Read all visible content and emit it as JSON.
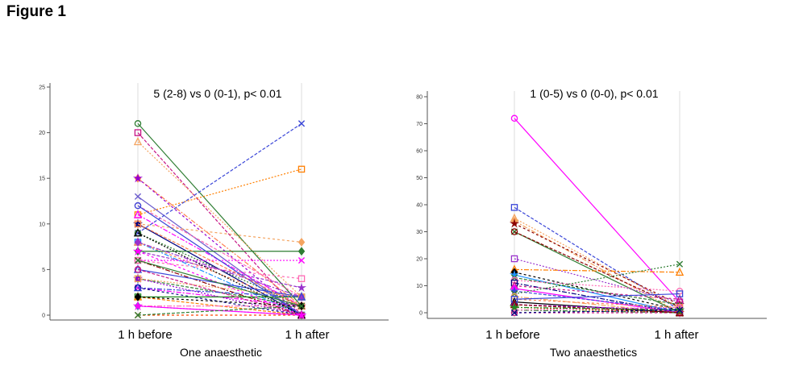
{
  "figure_title": "Figure 1",
  "chart_data": [
    {
      "type": "line",
      "annotation": "5 (2-8) vs 0 (0-1), p< 0.01",
      "xlabel": "One anaesthetic",
      "categories": [
        "1 h before",
        "1 h after"
      ],
      "ylim": [
        0,
        25
      ],
      "yticks": [
        0,
        5,
        10,
        15,
        20,
        25
      ],
      "grid": "vertical lines at categories",
      "series": [
        {
          "values": [
            21,
            1
          ],
          "color": "#2e7d32"
        },
        {
          "values": [
            20,
            0
          ],
          "color": "#c71585"
        },
        {
          "values": [
            19,
            2
          ],
          "color": "#f4a460"
        },
        {
          "values": [
            15,
            1
          ],
          "color": "#ff7f50"
        },
        {
          "values": [
            15,
            0
          ],
          "color": "#9400d3"
        },
        {
          "values": [
            13,
            0
          ],
          "color": "#6a5acd"
        },
        {
          "values": [
            12,
            2
          ],
          "color": "#ff69b4"
        },
        {
          "values": [
            11,
            16
          ],
          "color": "#ff7f00"
        },
        {
          "values": [
            11,
            1
          ],
          "color": "#ff00ff"
        },
        {
          "values": [
            10,
            8
          ],
          "color": "#f4a460"
        },
        {
          "values": [
            10,
            0
          ],
          "color": "#000080"
        },
        {
          "values": [
            9,
            21
          ],
          "color": "#3a46d8"
        },
        {
          "values": [
            9,
            1
          ],
          "color": "#2e7d32"
        },
        {
          "values": [
            8,
            0
          ],
          "color": "#1e90ff"
        },
        {
          "values": [
            8,
            1
          ],
          "color": "#ff7f50"
        },
        {
          "values": [
            7,
            7
          ],
          "color": "#2e7d32"
        },
        {
          "values": [
            7,
            3
          ],
          "color": "#9932cc"
        },
        {
          "values": [
            6,
            6
          ],
          "color": "#ff00ff"
        },
        {
          "values": [
            6,
            0
          ],
          "color": "#8b0000"
        },
        {
          "values": [
            6,
            4
          ],
          "color": "#ff69b4"
        },
        {
          "values": [
            5,
            2
          ],
          "color": "#3a46d8"
        },
        {
          "values": [
            4,
            1
          ],
          "color": "#2e7d32"
        },
        {
          "values": [
            4,
            0
          ],
          "color": "#9400d3"
        },
        {
          "values": [
            3,
            1
          ],
          "color": "#ff00ff"
        },
        {
          "values": [
            3,
            0
          ],
          "color": "#000080"
        },
        {
          "values": [
            2,
            2
          ],
          "color": "#228b22"
        },
        {
          "values": [
            2,
            0
          ],
          "color": "#ff7f00"
        },
        {
          "values": [
            1,
            0
          ],
          "color": "#6a5acd"
        },
        {
          "values": [
            1,
            1
          ],
          "color": "#ff69b4"
        },
        {
          "values": [
            0,
            0
          ],
          "color": "#ff4500"
        },
        {
          "values": [
            12,
            0
          ],
          "color": "#3a46d8"
        },
        {
          "values": [
            10,
            1
          ],
          "color": "#ff7f50"
        },
        {
          "values": [
            9,
            0
          ],
          "color": "#000000"
        },
        {
          "values": [
            8,
            2
          ],
          "color": "#9932cc"
        },
        {
          "values": [
            7,
            0
          ],
          "color": "#ff00ff"
        },
        {
          "values": [
            6,
            1
          ],
          "color": "#2e7d32"
        },
        {
          "values": [
            5,
            0
          ],
          "color": "#c71585"
        },
        {
          "values": [
            4,
            2
          ],
          "color": "#f4a460"
        },
        {
          "values": [
            3,
            2
          ],
          "color": "#3a46d8"
        },
        {
          "values": [
            2,
            1
          ],
          "color": "#000000"
        },
        {
          "values": [
            1,
            0
          ],
          "color": "#ff00ff"
        },
        {
          "values": [
            0,
            1
          ],
          "color": "#2e7d32"
        }
      ]
    },
    {
      "type": "line",
      "annotation": "1 (0-5) vs 0 (0-0), p< 0.01",
      "xlabel": "Two anaesthetics",
      "categories": [
        "1 h before",
        "1 h after"
      ],
      "ylim": [
        0,
        80
      ],
      "yticks": [
        0,
        10,
        20,
        30,
        40,
        50,
        60,
        70,
        80
      ],
      "grid": "vertical lines at categories",
      "series": [
        {
          "values": [
            72,
            4
          ],
          "color": "#ff00ff"
        },
        {
          "values": [
            39,
            1
          ],
          "color": "#3a46d8"
        },
        {
          "values": [
            35,
            2
          ],
          "color": "#f4a460"
        },
        {
          "values": [
            34,
            0
          ],
          "color": "#f4a460"
        },
        {
          "values": [
            33,
            3
          ],
          "color": "#8b0000"
        },
        {
          "values": [
            30,
            0
          ],
          "color": "#2e7d32"
        },
        {
          "values": [
            30,
            2
          ],
          "color": "#8b0000"
        },
        {
          "values": [
            20,
            4
          ],
          "color": "#9932cc"
        },
        {
          "values": [
            16,
            15
          ],
          "color": "#ff7f00"
        },
        {
          "values": [
            15,
            1
          ],
          "color": "#000000"
        },
        {
          "values": [
            14,
            0
          ],
          "color": "#1e90ff"
        },
        {
          "values": [
            13,
            3
          ],
          "color": "#2e7d32"
        },
        {
          "values": [
            12,
            8
          ],
          "color": "#ff69b4"
        },
        {
          "values": [
            11,
            0
          ],
          "color": "#000080"
        },
        {
          "values": [
            10,
            5
          ],
          "color": "#c71585"
        },
        {
          "values": [
            9,
            0
          ],
          "color": "#ff00ff"
        },
        {
          "values": [
            8,
            1
          ],
          "color": "#3a46d8"
        },
        {
          "values": [
            7,
            18
          ],
          "color": "#2e7d32"
        },
        {
          "values": [
            6,
            0
          ],
          "color": "#f4a460"
        },
        {
          "values": [
            5,
            2
          ],
          "color": "#ff7f50"
        },
        {
          "values": [
            4,
            0
          ],
          "color": "#000000"
        },
        {
          "values": [
            3,
            1
          ],
          "color": "#9400d3"
        },
        {
          "values": [
            2,
            0
          ],
          "color": "#ff4500"
        },
        {
          "values": [
            1,
            0
          ],
          "color": "#2e7d32"
        },
        {
          "values": [
            0,
            0
          ],
          "color": "#c71585"
        },
        {
          "values": [
            5,
            7
          ],
          "color": "#3a46d8"
        },
        {
          "values": [
            3,
            0
          ],
          "color": "#8b0000"
        },
        {
          "values": [
            1,
            2
          ],
          "color": "#ff69b4"
        },
        {
          "values": [
            2,
            1
          ],
          "color": "#228b22"
        },
        {
          "values": [
            0,
            1
          ],
          "color": "#000080"
        }
      ]
    }
  ]
}
